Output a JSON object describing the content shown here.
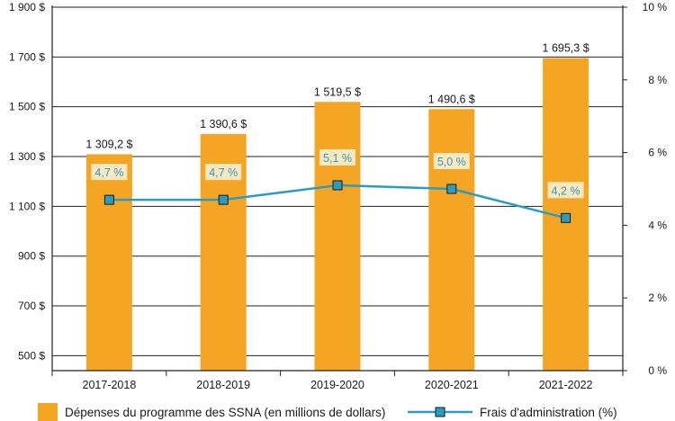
{
  "chart_data": {
    "type": "bar",
    "categories": [
      "2017-2018",
      "2018-2019",
      "2019-2020",
      "2020-2021",
      "2021-2022"
    ],
    "series": [
      {
        "name": "Dépenses du programme des SSNA (en millions de dollars)",
        "type": "bar",
        "axis": "left",
        "values": [
          1309.2,
          1390.6,
          1519.5,
          1490.6,
          1695.3
        ],
        "labels": [
          "1 309,2 $",
          "1 390,6 $",
          "1 519,5 $",
          "1 490,6 $",
          "1 695,3 $"
        ],
        "color": "#f4a524"
      },
      {
        "name": "Frais d'administration (%)",
        "type": "line",
        "axis": "right",
        "values": [
          4.7,
          4.7,
          5.1,
          5.0,
          4.2
        ],
        "labels": [
          "4,7 %",
          "4,7 %",
          "5,1 %",
          "5,0 %",
          "4,2 %"
        ],
        "color": "#2a9cc0",
        "marker_color": "#1f7f9a"
      }
    ],
    "y_left": {
      "ylim": [
        440,
        1900
      ],
      "ticks": [
        500,
        700,
        900,
        1100,
        1300,
        1500,
        1700,
        1900
      ],
      "tick_labels": [
        "500 $",
        "700 $",
        "900 $",
        "1 100 $",
        "1 300 $",
        "1 500 $",
        "1 700 $",
        "1 900 $"
      ]
    },
    "y_right": {
      "ylim": [
        0,
        10
      ],
      "ticks": [
        0,
        2,
        4,
        6,
        8,
        10
      ],
      "tick_labels": [
        "0 %",
        "2 %",
        "4 %",
        "6 %",
        "8 %",
        "10 %"
      ]
    },
    "grid": true,
    "legend_position": "bottom",
    "label_box_color": "#f9e7c0"
  }
}
